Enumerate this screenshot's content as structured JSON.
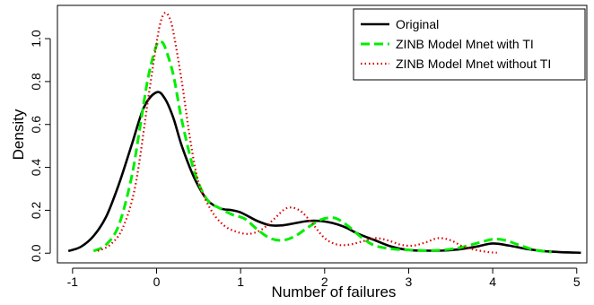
{
  "chart_data": {
    "type": "line",
    "title": "",
    "xlabel": "Number of failures",
    "ylabel": "Density",
    "xlim": [
      -1.18,
      5.12
    ],
    "ylim": [
      -0.045,
      1.155
    ],
    "x_ticks": [
      "-1",
      "0",
      "1",
      "2",
      "3",
      "4",
      "5"
    ],
    "y_ticks": [
      "0.0",
      "0.2",
      "0.4",
      "0.6",
      "0.8",
      "1.0"
    ],
    "grid": false,
    "legend_position": "top-right",
    "series": [
      {
        "name": "Original",
        "color": "#000000",
        "style": "solid",
        "x": [
          -1.05,
          -0.9,
          -0.75,
          -0.6,
          -0.45,
          -0.3,
          -0.15,
          0.0,
          0.1,
          0.2,
          0.3,
          0.45,
          0.6,
          0.75,
          0.9,
          1.0,
          1.1,
          1.2,
          1.35,
          1.5,
          1.65,
          1.8,
          1.95,
          2.1,
          2.25,
          2.4,
          2.6,
          2.8,
          3.0,
          3.2,
          3.4,
          3.6,
          3.8,
          4.0,
          4.2,
          4.4,
          4.6,
          4.8,
          5.05
        ],
        "y": [
          0.01,
          0.03,
          0.08,
          0.17,
          0.32,
          0.5,
          0.68,
          0.75,
          0.72,
          0.63,
          0.5,
          0.35,
          0.25,
          0.21,
          0.2,
          0.19,
          0.17,
          0.15,
          0.13,
          0.13,
          0.14,
          0.15,
          0.15,
          0.14,
          0.12,
          0.09,
          0.06,
          0.03,
          0.015,
          0.012,
          0.012,
          0.018,
          0.03,
          0.045,
          0.035,
          0.02,
          0.01,
          0.005,
          0.002
        ]
      },
      {
        "name": "ZINB Model Mnet with TI",
        "color": "#00ee00",
        "style": "dashed",
        "x": [
          -0.75,
          -0.6,
          -0.45,
          -0.3,
          -0.2,
          -0.1,
          0.0,
          0.05,
          0.1,
          0.2,
          0.3,
          0.45,
          0.6,
          0.75,
          0.9,
          1.05,
          1.2,
          1.35,
          1.5,
          1.65,
          1.8,
          1.95,
          2.05,
          2.15,
          2.3,
          2.45,
          2.6,
          2.8,
          3.0,
          3.2,
          3.4,
          3.6,
          3.8,
          4.0,
          4.15,
          4.3,
          4.5,
          4.7
        ],
        "y": [
          0.01,
          0.04,
          0.13,
          0.35,
          0.58,
          0.82,
          0.97,
          0.985,
          0.96,
          0.83,
          0.62,
          0.38,
          0.25,
          0.21,
          0.18,
          0.16,
          0.11,
          0.07,
          0.06,
          0.08,
          0.12,
          0.155,
          0.165,
          0.16,
          0.12,
          0.07,
          0.035,
          0.02,
          0.015,
          0.012,
          0.015,
          0.025,
          0.045,
          0.065,
          0.06,
          0.04,
          0.015,
          0.005
        ]
      },
      {
        "name": "ZINB Model Mnet without TI",
        "color": "#dd0000",
        "style": "dotted",
        "x": [
          -0.7,
          -0.55,
          -0.4,
          -0.25,
          -0.1,
          0.0,
          0.05,
          0.1,
          0.15,
          0.2,
          0.3,
          0.4,
          0.5,
          0.65,
          0.8,
          0.95,
          1.1,
          1.25,
          1.4,
          1.55,
          1.7,
          1.85,
          2.0,
          2.15,
          2.3,
          2.45,
          2.6,
          2.75,
          2.9,
          3.05,
          3.2,
          3.35,
          3.5,
          3.65,
          3.8,
          3.95,
          4.05
        ],
        "y": [
          0.01,
          0.04,
          0.12,
          0.32,
          0.72,
          0.98,
          1.08,
          1.12,
          1.1,
          1.03,
          0.8,
          0.53,
          0.33,
          0.2,
          0.13,
          0.1,
          0.09,
          0.11,
          0.16,
          0.21,
          0.2,
          0.14,
          0.07,
          0.04,
          0.04,
          0.055,
          0.07,
          0.06,
          0.04,
          0.035,
          0.05,
          0.07,
          0.06,
          0.03,
          0.015,
          0.005,
          0.002
        ]
      }
    ]
  }
}
